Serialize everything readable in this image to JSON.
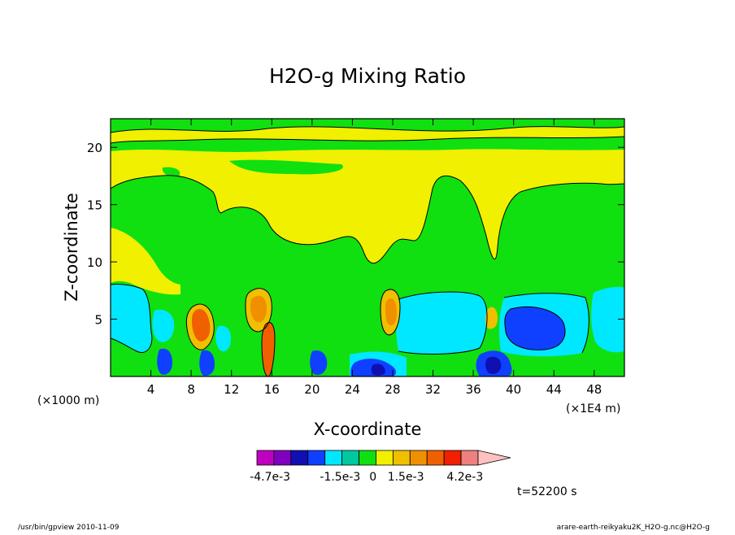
{
  "chart_data": {
    "type": "heatmap",
    "title": "H2O-g Mixing Ratio",
    "xlabel": "X-coordinate",
    "ylabel": "Z-coordinate",
    "x_unit_left": "(×1000 m)",
    "x_unit_right": "(×1E4 m)",
    "xlim": [
      0,
      51
    ],
    "ylim": [
      0,
      22.5
    ],
    "x_ticks": [
      4,
      8,
      12,
      16,
      20,
      24,
      28,
      32,
      36,
      40,
      44,
      48
    ],
    "x_tick_labels": [
      "4",
      "8",
      "12",
      "16",
      "20",
      "24",
      "28",
      "32",
      "36",
      "40",
      "44",
      "48"
    ],
    "y_ticks": [
      5,
      10,
      15,
      20
    ],
    "y_tick_labels": [
      "5",
      "10",
      "15",
      "20"
    ],
    "colorbar": {
      "colors": [
        "#c000c0",
        "#8000c0",
        "#1010b0",
        "#1040ff",
        "#00e8ff",
        "#00c8a0",
        "#10e010",
        "#f0f000",
        "#f0c000",
        "#f09000",
        "#f06000",
        "#f02000",
        "#f08080"
      ],
      "labels": [
        "-4.7e-3",
        "-1.5e-3",
        "0",
        "1.5e-3",
        "4.2e-3"
      ],
      "label_values": [
        -0.0047,
        -0.0015,
        0,
        0.0015,
        0.0042
      ],
      "range": [
        -0.0053,
        0.0048
      ]
    },
    "regions": {
      "background": "#10e010",
      "yellow": "#f0f000",
      "cyan": "#00e8ff",
      "blue": "#1040ff",
      "navy": "#1010b0",
      "orange": "#f0c000",
      "dark_orange": "#f06000"
    }
  },
  "time_label": "t=52200 s",
  "footer_left": "/usr/bin/gpview   2010-11-09",
  "footer_right": "arare-earth-reikyaku2K_H2O-g.nc@H2O-g"
}
